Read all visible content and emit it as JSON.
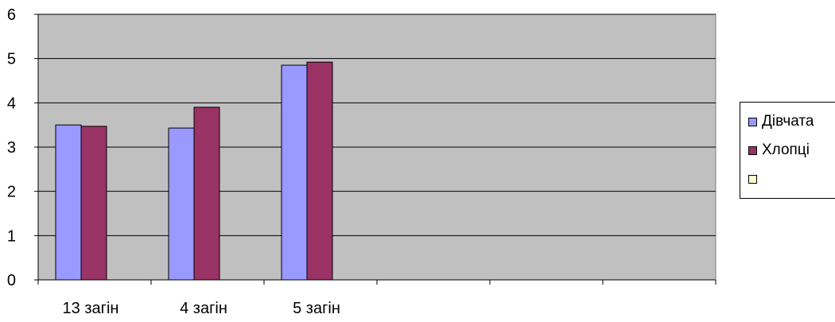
{
  "chart_data": {
    "type": "bar",
    "categories": [
      "13 загін",
      "4 загін",
      "5 загін",
      "",
      "",
      ""
    ],
    "series": [
      {
        "name": "Дівчата",
        "color": "#9999FF",
        "values": [
          3.5,
          3.43,
          4.85,
          null,
          null,
          null
        ]
      },
      {
        "name": "Хлопці",
        "color": "#993366",
        "values": [
          3.47,
          3.9,
          4.92,
          null,
          null,
          null
        ]
      },
      {
        "name": "",
        "color": "#FFFFCC",
        "values": [
          null,
          null,
          null,
          null,
          null,
          null
        ]
      }
    ],
    "yticks": [
      "0",
      "1",
      "2",
      "3",
      "4",
      "5",
      "6"
    ],
    "ylim": [
      0,
      6
    ],
    "grid": true,
    "plot_background": "#C0C0C0",
    "legend_position": "right"
  }
}
